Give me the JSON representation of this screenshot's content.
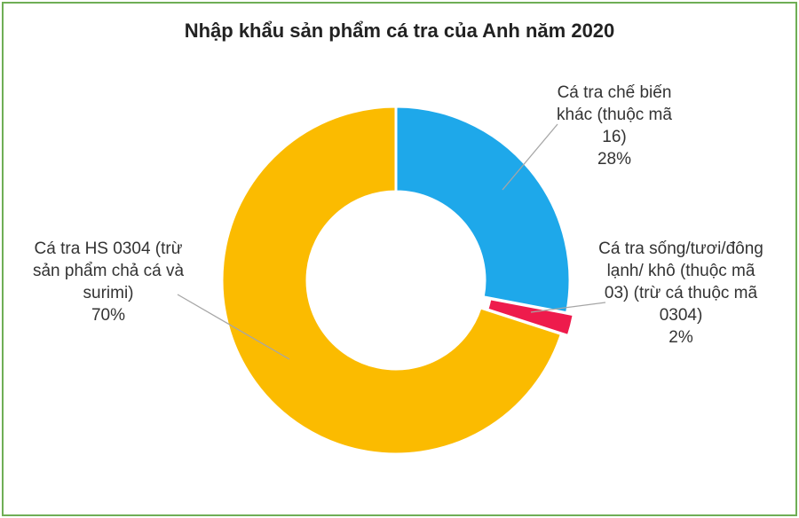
{
  "chart_data": {
    "type": "donut",
    "title": "Nhập khẩu sản phẩm cá tra của Anh năm 2020",
    "categories": [
      "Cá tra chế biến khác (thuộc mã 16)",
      "Cá tra sống/tươi/đông lạnh/ khô (thuộc mã 03) (trừ cá thuộc mã 0304)",
      "Cá tra HS 0304 (trừ sản phẩm chả cá và surimi)"
    ],
    "values": [
      28,
      2,
      70
    ],
    "value_labels": [
      "28%",
      "2%",
      "70%"
    ],
    "colors": [
      "#1ea8ea",
      "#ee1b4c",
      "#fbbb00"
    ]
  }
}
